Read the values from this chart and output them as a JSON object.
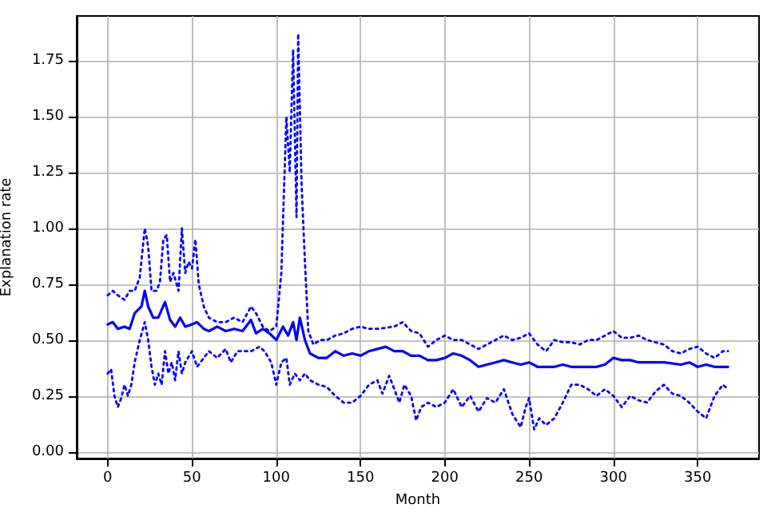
{
  "chart_data": {
    "type": "line",
    "xlabel": "Month",
    "ylabel": "Explanation rate",
    "xlim": [
      -18.4,
      386.4
    ],
    "ylim": [
      -0.03,
      1.95
    ],
    "xticks": [
      0,
      50,
      100,
      150,
      200,
      250,
      300,
      350
    ],
    "yticks": [
      {
        "value": 0,
        "label": "0.00"
      },
      {
        "value": 0.25,
        "label": "0.25"
      },
      {
        "value": 0.5,
        "label": "0.50"
      },
      {
        "value": 0.75,
        "label": "0.75"
      },
      {
        "value": 1,
        "label": "1.00"
      },
      {
        "value": 1.25,
        "label": "1.25"
      },
      {
        "value": 1.5,
        "label": "1.50"
      },
      {
        "value": 1.75,
        "label": "1.75"
      }
    ],
    "grid": true,
    "marker": "none",
    "series": [
      {
        "color": "#0000ff",
        "line_style": "solid",
        "x": [
          0,
          3,
          6,
          10,
          13,
          16,
          20,
          22,
          24,
          27,
          30,
          34,
          37,
          40,
          43,
          46,
          50,
          53,
          57,
          60,
          65,
          70,
          75,
          80,
          85,
          88,
          92,
          96,
          100,
          104,
          107,
          110,
          112,
          114,
          117,
          120,
          125,
          130,
          135,
          140,
          145,
          150,
          155,
          160,
          165,
          170,
          175,
          180,
          185,
          190,
          195,
          200,
          205,
          210,
          215,
          220,
          225,
          230,
          235,
          240,
          245,
          250,
          255,
          260,
          265,
          270,
          275,
          280,
          285,
          290,
          295,
          300,
          305,
          310,
          315,
          320,
          330,
          340,
          345,
          350,
          355,
          360,
          368
        ],
        "values": [
          0.57,
          0.58,
          0.55,
          0.56,
          0.55,
          0.62,
          0.65,
          0.72,
          0.65,
          0.6,
          0.6,
          0.67,
          0.59,
          0.56,
          0.6,
          0.56,
          0.57,
          0.58,
          0.55,
          0.54,
          0.56,
          0.54,
          0.55,
          0.54,
          0.59,
          0.53,
          0.55,
          0.53,
          0.5,
          0.56,
          0.52,
          0.58,
          0.5,
          0.6,
          0.5,
          0.44,
          0.42,
          0.42,
          0.45,
          0.43,
          0.44,
          0.43,
          0.45,
          0.46,
          0.47,
          0.45,
          0.45,
          0.43,
          0.43,
          0.41,
          0.41,
          0.42,
          0.44,
          0.43,
          0.41,
          0.38,
          0.39,
          0.4,
          0.41,
          0.4,
          0.39,
          0.4,
          0.38,
          0.38,
          0.38,
          0.39,
          0.38,
          0.38,
          0.38,
          0.38,
          0.39,
          0.42,
          0.41,
          0.41,
          0.4,
          0.4,
          0.4,
          0.39,
          0.4,
          0.38,
          0.39,
          0.38,
          0.38
        ]
      },
      {
        "color": "#0000ff",
        "line_style": "dotted",
        "x": [
          0,
          3,
          6,
          10,
          13,
          16,
          19,
          22,
          24,
          26,
          29,
          31,
          33,
          35,
          37,
          39,
          42,
          44,
          46,
          48,
          50,
          52,
          54,
          57,
          60,
          65,
          70,
          75,
          80,
          85,
          88,
          92,
          96,
          100,
          103,
          106,
          108,
          110,
          112,
          113,
          115,
          117,
          119,
          122,
          126,
          130,
          135,
          140,
          145,
          150,
          155,
          160,
          170,
          175,
          180,
          185,
          190,
          195,
          200,
          205,
          210,
          215,
          220,
          225,
          230,
          235,
          240,
          245,
          250,
          255,
          260,
          265,
          270,
          275,
          280,
          285,
          290,
          295,
          300,
          305,
          310,
          315,
          320,
          325,
          330,
          335,
          340,
          345,
          350,
          355,
          360,
          365,
          368
        ],
        "values": [
          0.7,
          0.72,
          0.7,
          0.68,
          0.72,
          0.72,
          0.78,
          1.0,
          0.92,
          0.72,
          0.72,
          0.76,
          0.95,
          0.97,
          0.76,
          0.8,
          0.72,
          1.0,
          0.8,
          0.85,
          0.82,
          0.95,
          0.75,
          0.65,
          0.6,
          0.58,
          0.58,
          0.6,
          0.58,
          0.65,
          0.62,
          0.56,
          0.54,
          0.56,
          0.8,
          1.5,
          1.25,
          1.8,
          1.05,
          1.87,
          1.2,
          0.85,
          0.54,
          0.48,
          0.5,
          0.5,
          0.52,
          0.53,
          0.55,
          0.56,
          0.55,
          0.55,
          0.56,
          0.58,
          0.54,
          0.53,
          0.47,
          0.5,
          0.52,
          0.5,
          0.5,
          0.48,
          0.46,
          0.48,
          0.5,
          0.52,
          0.5,
          0.51,
          0.53,
          0.48,
          0.45,
          0.5,
          0.49,
          0.49,
          0.48,
          0.5,
          0.5,
          0.52,
          0.54,
          0.51,
          0.51,
          0.52,
          0.5,
          0.49,
          0.48,
          0.45,
          0.44,
          0.46,
          0.47,
          0.44,
          0.42,
          0.45,
          0.45
        ]
      },
      {
        "color": "#0000ff",
        "line_style": "dotted",
        "x": [
          0,
          2,
          4,
          6,
          8,
          10,
          12,
          14,
          16,
          19,
          22,
          24,
          26,
          28,
          30,
          32,
          34,
          36,
          38,
          40,
          42,
          44,
          46,
          50,
          53,
          57,
          60,
          65,
          70,
          73,
          77,
          80,
          85,
          90,
          93,
          97,
          100,
          103,
          106,
          108,
          111,
          114,
          117,
          120,
          125,
          130,
          135,
          140,
          145,
          150,
          155,
          160,
          163,
          167,
          170,
          173,
          176,
          180,
          183,
          186,
          190,
          195,
          200,
          205,
          210,
          215,
          220,
          225,
          230,
          235,
          240,
          245,
          248,
          250,
          253,
          256,
          260,
          265,
          270,
          275,
          280,
          285,
          290,
          295,
          300,
          305,
          310,
          315,
          320,
          325,
          330,
          335,
          340,
          345,
          350,
          355,
          360,
          365,
          368
        ],
        "values": [
          0.35,
          0.37,
          0.25,
          0.2,
          0.24,
          0.3,
          0.25,
          0.3,
          0.4,
          0.5,
          0.58,
          0.5,
          0.38,
          0.3,
          0.35,
          0.3,
          0.45,
          0.35,
          0.4,
          0.32,
          0.45,
          0.35,
          0.4,
          0.45,
          0.38,
          0.42,
          0.45,
          0.42,
          0.46,
          0.4,
          0.45,
          0.45,
          0.45,
          0.47,
          0.45,
          0.4,
          0.3,
          0.4,
          0.42,
          0.3,
          0.35,
          0.32,
          0.35,
          0.32,
          0.3,
          0.29,
          0.25,
          0.22,
          0.22,
          0.25,
          0.3,
          0.32,
          0.26,
          0.34,
          0.28,
          0.22,
          0.3,
          0.25,
          0.14,
          0.2,
          0.22,
          0.2,
          0.22,
          0.28,
          0.2,
          0.25,
          0.18,
          0.24,
          0.22,
          0.28,
          0.17,
          0.11,
          0.2,
          0.24,
          0.1,
          0.15,
          0.12,
          0.15,
          0.22,
          0.3,
          0.3,
          0.28,
          0.25,
          0.28,
          0.25,
          0.2,
          0.25,
          0.23,
          0.22,
          0.27,
          0.3,
          0.26,
          0.25,
          0.22,
          0.18,
          0.15,
          0.25,
          0.3,
          0.28
        ]
      }
    ]
  }
}
